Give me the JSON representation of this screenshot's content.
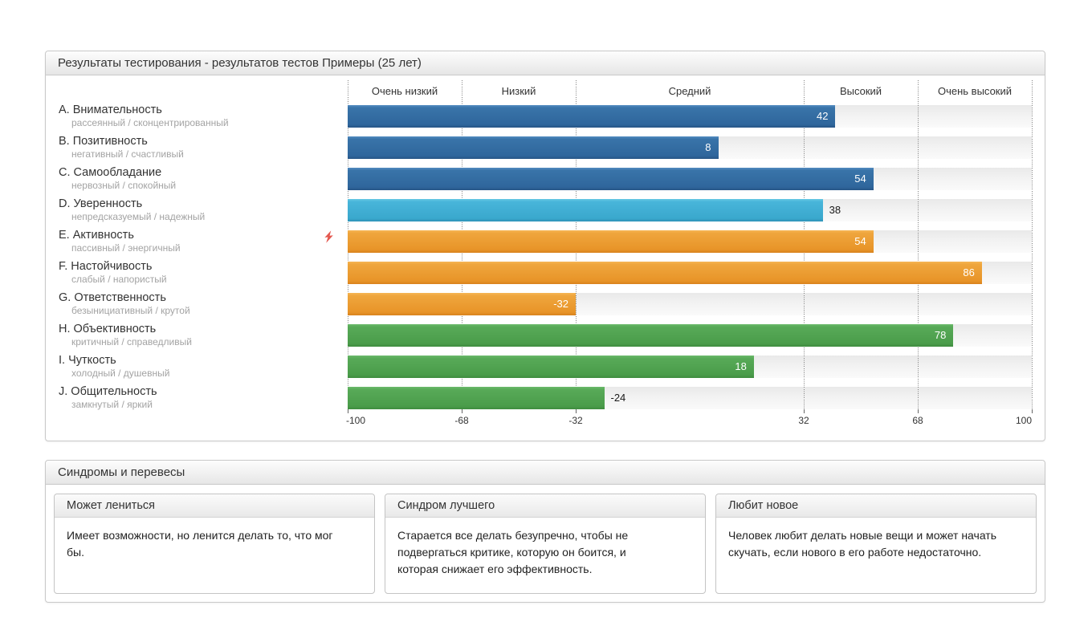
{
  "chart_data": {
    "type": "bar",
    "orientation": "horizontal",
    "title": "Результаты тестирования - результатов тестов Примеры (25 лет)",
    "zones": [
      "Очень низкий",
      "Низкий",
      "Средний",
      "Высокий",
      "Очень высокий"
    ],
    "axis_ticks": [
      -100,
      -68,
      -32,
      32,
      68,
      100
    ],
    "xlim": [
      -100,
      100
    ],
    "categories": [
      "A. Внимательность",
      "B. Позитивность",
      "C. Самообладание",
      "D. Уверенность",
      "E. Активность",
      "F. Настойчивость",
      "G. Ответственность",
      "H. Объективность",
      "I. Чуткость",
      "J. Общительность"
    ],
    "values": [
      42,
      8,
      54,
      38,
      54,
      86,
      -32,
      78,
      18,
      -24
    ],
    "rows": [
      {
        "label": "A. Внимательность",
        "sublabel": "рассеянный / сконцентрированный",
        "value": 42,
        "color": "blue",
        "label_inside": true,
        "marker": false
      },
      {
        "label": "B. Позитивность",
        "sublabel": "негативный / счастливый",
        "value": 8,
        "color": "blue",
        "label_inside": true,
        "marker": false
      },
      {
        "label": "C. Самообладание",
        "sublabel": "нервозный / спокойный",
        "value": 54,
        "color": "blue",
        "label_inside": true,
        "marker": false
      },
      {
        "label": "D. Уверенность",
        "sublabel": "непредсказуемый / надежный",
        "value": 38,
        "color": "cyan",
        "label_inside": false,
        "marker": false
      },
      {
        "label": "E. Активность",
        "sublabel": "пассивный / энергичный",
        "value": 54,
        "color": "orange",
        "label_inside": true,
        "marker": true
      },
      {
        "label": "F. Настойчивость",
        "sublabel": "слабый / напористый",
        "value": 86,
        "color": "orange",
        "label_inside": true,
        "marker": false
      },
      {
        "label": "G. Ответственность",
        "sublabel": "безынициативный / крутой",
        "value": -32,
        "color": "orange",
        "label_inside": true,
        "marker": false
      },
      {
        "label": "H. Объективность",
        "sublabel": "критичный / справедливый",
        "value": 78,
        "color": "green",
        "label_inside": true,
        "marker": false
      },
      {
        "label": "I. Чуткость",
        "sublabel": "холодный / душевный",
        "value": 18,
        "color": "green",
        "label_inside": true,
        "marker": false
      },
      {
        "label": "J. Общительность",
        "sublabel": "замкнутый / яркий",
        "value": -24,
        "color": "green",
        "label_inside": false,
        "marker": false
      }
    ],
    "colors": {
      "blue": {
        "from": "#538cc0",
        "mid1": "#3974a9",
        "mid2": "#2f669c",
        "edge": "#275586"
      },
      "cyan": {
        "from": "#66c8e3",
        "mid1": "#48b5da",
        "mid2": "#3aa8cd",
        "edge": "#2f93b8"
      },
      "orange": {
        "from": "#f6b656",
        "mid1": "#efa63d",
        "mid2": "#e89428",
        "edge": "#d8821c"
      },
      "green": {
        "from": "#6cba6c",
        "mid1": "#58aa58",
        "mid2": "#4a9c4a",
        "edge": "#3f8c3f"
      }
    },
    "marker_color": "#e4574e"
  },
  "syndromes": {
    "title": "Синдромы и перевесы",
    "cards": [
      {
        "title": "Может лениться",
        "text": "Имеет возможности, но ленится делать то, что мог бы."
      },
      {
        "title": "Синдром лучшего",
        "text": "Старается все делать безупречно, чтобы не подвергаться критике, которую он боится, и которая снижает его эффективность."
      },
      {
        "title": "Любит новое",
        "text": "Человек любит делать новые вещи и может начать скучать, если нового в его работе недостаточно."
      }
    ]
  }
}
